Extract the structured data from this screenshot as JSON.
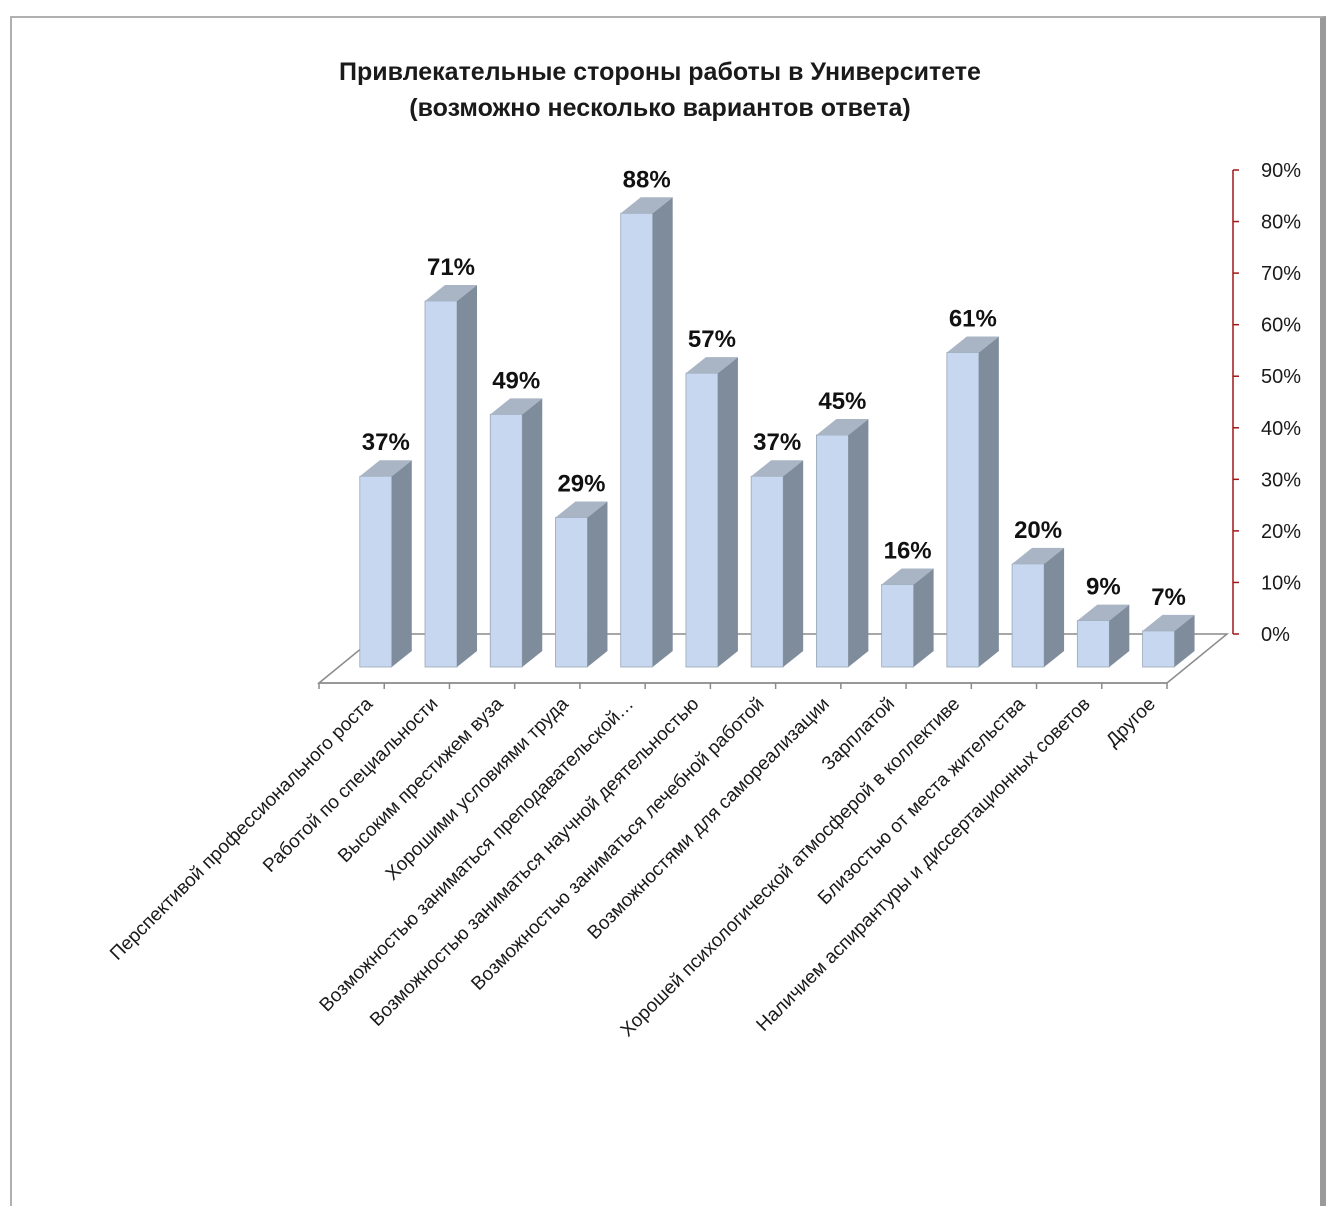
{
  "chart_data": {
    "type": "bar",
    "title": "Привлекательные стороны работы в Университете",
    "subtitle": "(возможно несколько вариантов ответа)",
    "categories": [
      "Перспективой  профессионального роста",
      "Работой по специальности",
      "Высоким престижем  вуза",
      "Хорошими условиями труда",
      "Возможностью заниматься преподавательской…",
      "Возможностью заниматься научной деятельностью",
      "Возможностью заниматься лечебной  работой",
      "Возможностями для самореализации",
      "Зарплатой",
      "Хорошей  психологической атмосферой в коллективе",
      "Близостью от места жительства",
      "Наличием аспирантуры и диссертационных советов",
      "Другое"
    ],
    "values": [
      37,
      71,
      49,
      29,
      88,
      57,
      37,
      45,
      16,
      61,
      20,
      9,
      7
    ],
    "data_labels": [
      "37%",
      "71%",
      "49%",
      "29%",
      "88%",
      "57%",
      "37%",
      "45%",
      "16%",
      "61%",
      "20%",
      "9%",
      "7%"
    ],
    "y_ticks": [
      "0%",
      "10%",
      "20%",
      "30%",
      "40%",
      "50%",
      "60%",
      "70%",
      "80%",
      "90%"
    ],
    "ylim": [
      0,
      90
    ],
    "y_axis_position": "right",
    "grid": false,
    "legend": "none",
    "colors": {
      "bar_front": "#c6d7ef",
      "bar_side": "#7f8c9b",
      "bar_top": "#a9b5c4",
      "axis": "#a01818",
      "floor": "#8a8a8a"
    }
  }
}
